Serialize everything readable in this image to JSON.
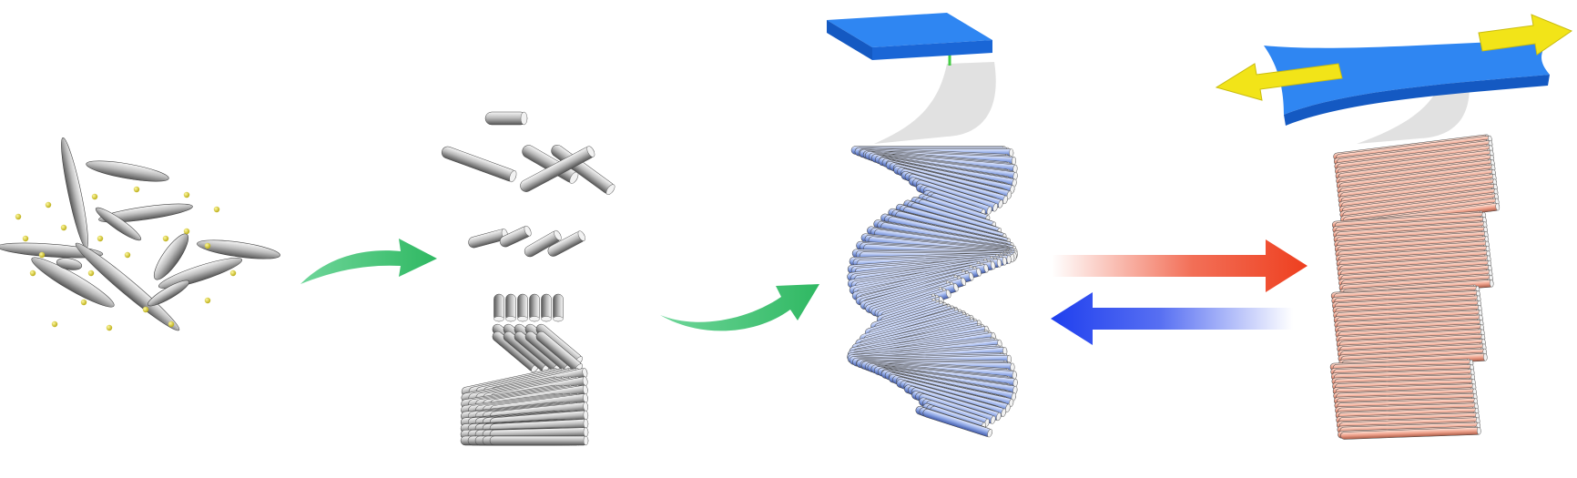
{
  "figure": {
    "panels": [
      {
        "name": "dispersed-nanorods",
        "particle_color": "#eeeeee",
        "dot_color": "#e8e020"
      },
      {
        "name": "assembling-nanorods",
        "rod_color": "#b8b8b8"
      },
      {
        "name": "twisted-helical-stack",
        "rod_color": "#8fa8e6",
        "block_color": "#1e73e6"
      },
      {
        "name": "aligned-stretched-stack",
        "rod_color": "#eea08a",
        "block_color": "#1e73e6",
        "pull_arrow_color": "#f2e418"
      }
    ],
    "process_arrow_color": "#3cc06a",
    "forward_arrow_color": "#ee3f1f",
    "reverse_arrow_color": "#1f3fee",
    "tether_colors": {
      "left": "#44cc44",
      "right": "#ee3333"
    },
    "icons": [
      "process-arrow-icon",
      "stretch-arrow-icon",
      "relax-arrow-icon",
      "pull-arrow-icon"
    ]
  }
}
